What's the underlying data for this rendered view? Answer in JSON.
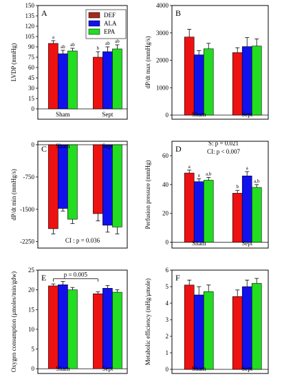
{
  "colors": {
    "DEF": "#ee1111",
    "ALA": "#1111ee",
    "EPA": "#22dd22",
    "legend_DEF": "#a52a1a"
  },
  "legend": [
    "DEF",
    "ALA",
    "EPA"
  ],
  "chart_data": [
    {
      "id": "A",
      "type": "bar",
      "panel_label": "A",
      "ylabel": "LVDP (mmHg)",
      "categories": [
        "Sham",
        "Sept"
      ],
      "ylim": [
        -15,
        150
      ],
      "yticks": [
        0,
        15,
        30,
        45,
        60,
        75,
        90,
        105,
        120,
        135,
        150
      ],
      "series": [
        {
          "name": "DEF",
          "values": [
            95,
            75
          ],
          "errors": [
            4,
            8
          ],
          "labels": [
            "a",
            "b"
          ]
        },
        {
          "name": "ALA",
          "values": [
            80,
            83
          ],
          "errors": [
            5,
            7
          ],
          "labels": [
            "ab",
            "ab"
          ]
        },
        {
          "name": "EPA",
          "values": [
            84,
            87
          ],
          "errors": [
            4,
            6
          ],
          "labels": [
            "ab",
            "ab"
          ]
        }
      ]
    },
    {
      "id": "B",
      "type": "bar",
      "panel_label": "B",
      "ylabel": "dP/dt max (mmHg/s)",
      "categories": [
        "Sham",
        "Sept"
      ],
      "ylim": [
        -150,
        4000
      ],
      "yticks": [
        0,
        1000,
        2000,
        3000,
        4000
      ],
      "series": [
        {
          "name": "DEF",
          "values": [
            2850,
            2280
          ],
          "errors": [
            280,
            180
          ],
          "labels": [
            "",
            ""
          ]
        },
        {
          "name": "ALA",
          "values": [
            2200,
            2500
          ],
          "errors": [
            150,
            330
          ],
          "labels": [
            "",
            ""
          ]
        },
        {
          "name": "EPA",
          "values": [
            2420,
            2520
          ],
          "errors": [
            200,
            260
          ],
          "labels": [
            "",
            ""
          ]
        }
      ]
    },
    {
      "id": "C",
      "type": "bar",
      "panel_label": "C",
      "ylabel": "dP/dt min (mmHg/s)",
      "categories": [
        "Sham",
        "Sept"
      ],
      "ylim": [
        -2400,
        80
      ],
      "yticks": [
        0,
        -750,
        -1500,
        -2250
      ],
      "series": [
        {
          "name": "DEF",
          "values": [
            -1950,
            -1600
          ],
          "errors": [
            120,
            170
          ],
          "labels": [
            "",
            ""
          ]
        },
        {
          "name": "ALA",
          "values": [
            -1480,
            -1870
          ],
          "errors": [
            60,
            160
          ],
          "labels": [
            "",
            ""
          ]
        },
        {
          "name": "EPA",
          "values": [
            -1730,
            -1910
          ],
          "errors": [
            100,
            160
          ],
          "labels": [
            "",
            ""
          ]
        }
      ],
      "note": "CI : p = 0.036"
    },
    {
      "id": "D",
      "type": "bar",
      "panel_label": "D",
      "ylabel": "Perfusion pressure (mmHg)",
      "categories": [
        "Sham",
        "Sept"
      ],
      "ylim": [
        -4,
        70
      ],
      "yticks": [
        0,
        20,
        40,
        60
      ],
      "series": [
        {
          "name": "DEF",
          "values": [
            48,
            34
          ],
          "errors": [
            2,
            2
          ],
          "labels": [
            "a",
            "b"
          ]
        },
        {
          "name": "ALA",
          "values": [
            42,
            46
          ],
          "errors": [
            2,
            3
          ],
          "labels": [
            "a",
            "a"
          ]
        },
        {
          "name": "EPA",
          "values": [
            43,
            38
          ],
          "errors": [
            2,
            2
          ],
          "labels": [
            "a,b",
            "a,b"
          ]
        }
      ],
      "note_line1": "S: p = 0.021",
      "note_line2": "CI: p < 0.007"
    },
    {
      "id": "E",
      "type": "bar",
      "panel_label": "E",
      "ylabel": "Oxygen consumption (μmoles/min/gdw)",
      "categories": [
        "Sham",
        "Sept"
      ],
      "ylim": [
        -1.2,
        25
      ],
      "yticks": [
        0,
        5,
        10,
        15,
        20,
        25
      ],
      "series": [
        {
          "name": "DEF",
          "values": [
            21,
            19
          ],
          "errors": [
            0.5,
            0.5
          ],
          "labels": [
            "",
            ""
          ]
        },
        {
          "name": "ALA",
          "values": [
            21.3,
            20.4
          ],
          "errors": [
            0.8,
            0.7
          ],
          "labels": [
            "",
            ""
          ]
        },
        {
          "name": "EPA",
          "values": [
            20,
            19.4
          ],
          "errors": [
            0.6,
            0.6
          ],
          "labels": [
            "",
            ""
          ]
        }
      ],
      "bracket": "p = 0.005"
    },
    {
      "id": "F",
      "type": "bar",
      "panel_label": "F",
      "ylabel": "Metabolic efficiency (mHg/μmole)",
      "categories": [
        "Sham",
        "Sept"
      ],
      "ylim": [
        -0.25,
        6
      ],
      "yticks": [
        0,
        1,
        2,
        3,
        4,
        5,
        6
      ],
      "series": [
        {
          "name": "DEF",
          "values": [
            5.1,
            4.4
          ],
          "errors": [
            0.3,
            0.4
          ],
          "labels": [
            "",
            ""
          ]
        },
        {
          "name": "ALA",
          "values": [
            4.5,
            5.0
          ],
          "errors": [
            0.5,
            0.4
          ],
          "labels": [
            "",
            ""
          ]
        },
        {
          "name": "EPA",
          "values": [
            4.7,
            5.2
          ],
          "errors": [
            0.4,
            0.3
          ],
          "labels": [
            "",
            ""
          ]
        }
      ]
    }
  ]
}
